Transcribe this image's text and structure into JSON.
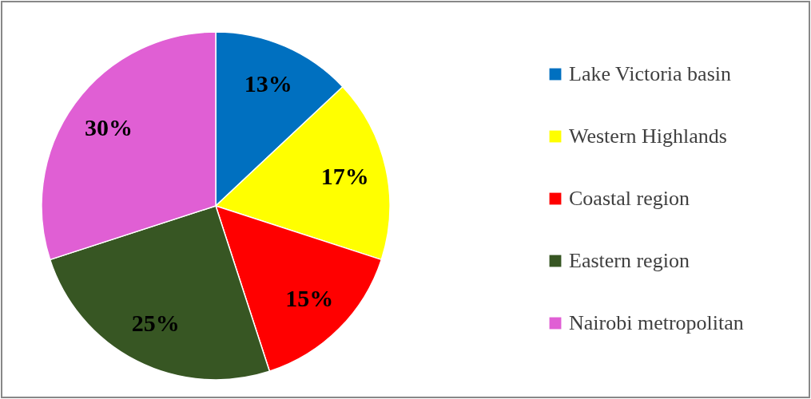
{
  "chart_data": {
    "type": "pie",
    "categories": [
      "Lake Victoria basin",
      "Western Highlands",
      "Coastal region",
      "Eastern region",
      "Nairobi metropolitan"
    ],
    "values": [
      13,
      17,
      15,
      25,
      30
    ],
    "colors": [
      "#0070c0",
      "#ffff00",
      "#ff0000",
      "#375623",
      "#e05fd4"
    ],
    "value_labels": [
      "13%",
      "17%",
      "15%",
      "25%",
      "30%"
    ],
    "legend": "right"
  }
}
